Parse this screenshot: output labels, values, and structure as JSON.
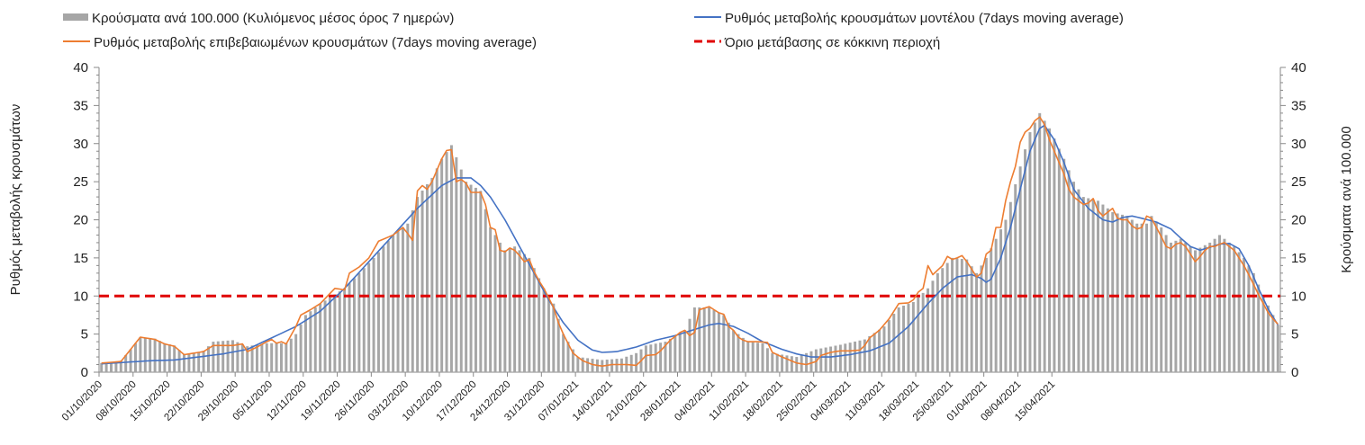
{
  "chart_data": {
    "type": "bar+line",
    "legend": [
      {
        "key": "bars",
        "label": "Κρούσματα ανά 100.000 (Κυλιόμενος μέσος όρος 7 ημερών)",
        "color": "#a6a6a6"
      },
      {
        "key": "model",
        "label": "Ρυθμός μεταβολής κρουσμάτων μοντέλου (7days moving average)",
        "color": "#4472c4"
      },
      {
        "key": "confirmed",
        "label": "Ρυθμός μεταβολής επιβεβαιωμένων κρουσμάτων (7days moving average)",
        "color": "#ed7d31"
      },
      {
        "key": "threshold",
        "label": "Όριο μετάβασης σε κόκκινη περιοχή",
        "color": "#e00000"
      }
    ],
    "ylabel_left": "Ρυθμός μεταβολής κρουσμάτων",
    "ylabel_right": "Κρούσματα ανά 100.000",
    "ylim": [
      0,
      40
    ],
    "yticks": [
      0,
      5,
      10,
      15,
      20,
      25,
      30,
      35,
      40
    ],
    "x_ticks": [
      "01/10/2020",
      "08/10/2020",
      "15/10/2020",
      "22/10/2020",
      "29/10/2020",
      "05/11/2020",
      "12/11/2020",
      "19/11/2020",
      "26/11/2020",
      "03/12/2020",
      "10/12/2020",
      "17/12/2020",
      "24/12/2020",
      "31/12/2020",
      "07/01/2021",
      "14/01/2021",
      "21/01/2021",
      "28/01/2021",
      "04/02/2021",
      "11/02/2021",
      "18/02/2021",
      "25/02/2021",
      "04/03/2021",
      "11/03/2021",
      "18/03/2021",
      "25/03/2021",
      "01/04/2021",
      "08/04/2021",
      "15/04/2021"
    ],
    "threshold": 10,
    "bars_anchors": [
      [
        0,
        1.2
      ],
      [
        4,
        1.5
      ],
      [
        6,
        3
      ],
      [
        8,
        4.6
      ],
      [
        11,
        4.4
      ],
      [
        13,
        3.8
      ],
      [
        15,
        3.5
      ],
      [
        17,
        2.3
      ],
      [
        21,
        2.8
      ],
      [
        23,
        4
      ],
      [
        27,
        4.2
      ],
      [
        30,
        3.4
      ],
      [
        34,
        3.8
      ],
      [
        38,
        3.8
      ],
      [
        40,
        5
      ],
      [
        42,
        7.5
      ],
      [
        45,
        9
      ],
      [
        50,
        11
      ],
      [
        53,
        13
      ],
      [
        56,
        15
      ],
      [
        60,
        18
      ],
      [
        63,
        19.5
      ],
      [
        65,
        23
      ],
      [
        68,
        25.5
      ],
      [
        70,
        28
      ],
      [
        72,
        29.8
      ],
      [
        75,
        25
      ],
      [
        78,
        23.8
      ],
      [
        80,
        19
      ],
      [
        83,
        16
      ],
      [
        85,
        16.5
      ],
      [
        88,
        15
      ],
      [
        91,
        11
      ],
      [
        93,
        9
      ],
      [
        95,
        5
      ],
      [
        98,
        2
      ],
      [
        103,
        1.6
      ],
      [
        107,
        1.8
      ],
      [
        110,
        2.5
      ],
      [
        112,
        3.5
      ],
      [
        116,
        4
      ],
      [
        120,
        5.5
      ],
      [
        122,
        8.5
      ],
      [
        125,
        8.5
      ],
      [
        128,
        7.5
      ],
      [
        130,
        5.5
      ],
      [
        133,
        4
      ],
      [
        136,
        3.8
      ],
      [
        138,
        2.5
      ],
      [
        143,
        2
      ],
      [
        147,
        3
      ],
      [
        152,
        3.6
      ],
      [
        157,
        4.3
      ],
      [
        161,
        6
      ],
      [
        164,
        8.5
      ],
      [
        167,
        9.2
      ],
      [
        170,
        11
      ],
      [
        172,
        13
      ],
      [
        175,
        15
      ],
      [
        178,
        14.8
      ],
      [
        180,
        13
      ],
      [
        182,
        15
      ],
      [
        184,
        17.5
      ],
      [
        186,
        20
      ],
      [
        189,
        27
      ],
      [
        191,
        31.5
      ],
      [
        193,
        34
      ],
      [
        195,
        32
      ],
      [
        198,
        28
      ],
      [
        200,
        25
      ],
      [
        202,
        23
      ],
      [
        205,
        22.5
      ],
      [
        208,
        21
      ],
      [
        211,
        20.5
      ],
      [
        213,
        19.5
      ],
      [
        215,
        19.5
      ],
      [
        216,
        20.5
      ],
      [
        218,
        19
      ],
      [
        220,
        17
      ],
      [
        222,
        17.5
      ],
      [
        225,
        16
      ],
      [
        228,
        17
      ],
      [
        230,
        18
      ],
      [
        233,
        16.5
      ],
      [
        235,
        15
      ],
      [
        237,
        13
      ],
      [
        239,
        10
      ],
      [
        241,
        7.5
      ],
      [
        242,
        6.2
      ]
    ],
    "confirmed_anchors": [
      [
        0,
        1.2
      ],
      [
        4,
        1.4
      ],
      [
        6,
        3
      ],
      [
        8,
        4.6
      ],
      [
        11,
        4.3
      ],
      [
        13,
        3.7
      ],
      [
        15,
        3.4
      ],
      [
        17,
        2.3
      ],
      [
        21,
        2.7
      ],
      [
        23,
        3.5
      ],
      [
        27,
        3.5
      ],
      [
        29,
        3.7
      ],
      [
        30,
        2.7
      ],
      [
        32,
        3.3
      ],
      [
        34,
        4
      ],
      [
        35,
        4.3
      ],
      [
        36,
        3.8
      ],
      [
        37,
        4
      ],
      [
        38,
        3.7
      ],
      [
        40,
        6
      ],
      [
        41,
        7.5
      ],
      [
        43,
        8.2
      ],
      [
        45,
        9
      ],
      [
        48,
        11
      ],
      [
        50,
        10.8
      ],
      [
        51,
        13
      ],
      [
        53,
        13.8
      ],
      [
        55,
        15
      ],
      [
        57,
        17.2
      ],
      [
        60,
        18
      ],
      [
        62,
        19
      ],
      [
        63,
        18.2
      ],
      [
        64,
        17.3
      ],
      [
        65,
        23.8
      ],
      [
        66,
        24.5
      ],
      [
        67,
        24
      ],
      [
        68,
        25
      ],
      [
        70,
        28
      ],
      [
        71,
        29.1
      ],
      [
        72,
        29.2
      ],
      [
        73,
        25
      ],
      [
        74,
        25.3
      ],
      [
        75,
        24.8
      ],
      [
        76,
        23.6
      ],
      [
        78,
        23.6
      ],
      [
        79,
        22
      ],
      [
        80,
        19
      ],
      [
        81,
        18.7
      ],
      [
        82,
        16
      ],
      [
        83,
        15.8
      ],
      [
        84,
        16.3
      ],
      [
        85,
        16
      ],
      [
        86,
        15.3
      ],
      [
        87,
        14.5
      ],
      [
        88,
        14.8
      ],
      [
        89,
        13.2
      ],
      [
        90,
        12
      ],
      [
        91,
        11
      ],
      [
        93,
        8.5
      ],
      [
        94,
        6.5
      ],
      [
        95,
        5
      ],
      [
        97,
        2.5
      ],
      [
        99,
        1.5
      ],
      [
        101,
        1
      ],
      [
        103,
        0.8
      ],
      [
        105,
        1
      ],
      [
        108,
        1
      ],
      [
        110,
        0.9
      ],
      [
        111,
        1.5
      ],
      [
        112,
        2.2
      ],
      [
        114,
        2.3
      ],
      [
        115,
        2.8
      ],
      [
        117,
        4.2
      ],
      [
        119,
        5.2
      ],
      [
        120,
        5.5
      ],
      [
        121,
        4.8
      ],
      [
        122,
        5.2
      ],
      [
        123,
        8.2
      ],
      [
        124,
        8.4
      ],
      [
        125,
        8.6
      ],
      [
        126,
        8.2
      ],
      [
        127,
        7.8
      ],
      [
        128,
        7.6
      ],
      [
        129,
        6
      ],
      [
        130,
        5.5
      ],
      [
        131,
        4.6
      ],
      [
        132,
        4.2
      ],
      [
        133,
        4
      ],
      [
        135,
        4
      ],
      [
        137,
        3.9
      ],
      [
        138,
        2.6
      ],
      [
        140,
        2
      ],
      [
        143,
        1.2
      ],
      [
        145,
        1
      ],
      [
        147,
        1.4
      ],
      [
        148,
        2.2
      ],
      [
        150,
        2.6
      ],
      [
        152,
        2.8
      ],
      [
        154,
        2.8
      ],
      [
        156,
        2.9
      ],
      [
        157,
        3.5
      ],
      [
        158,
        4.5
      ],
      [
        160,
        5.5
      ],
      [
        162,
        7
      ],
      [
        163,
        8
      ],
      [
        164,
        9
      ],
      [
        166,
        9.1
      ],
      [
        167,
        9.5
      ],
      [
        168,
        10.5
      ],
      [
        169,
        11
      ],
      [
        170,
        14
      ],
      [
        171,
        12.8
      ],
      [
        173,
        14
      ],
      [
        174,
        15.2
      ],
      [
        175,
        14.8
      ],
      [
        176,
        15
      ],
      [
        177,
        15.3
      ],
      [
        178,
        14.5
      ],
      [
        180,
        12.5
      ],
      [
        181,
        13
      ],
      [
        182,
        15.5
      ],
      [
        183,
        16
      ],
      [
        184,
        19
      ],
      [
        185,
        19
      ],
      [
        186,
        22.5
      ],
      [
        187,
        25
      ],
      [
        188,
        27
      ],
      [
        189,
        30.2
      ],
      [
        190,
        31.5
      ],
      [
        191,
        32
      ],
      [
        192,
        33
      ],
      [
        193,
        33.5
      ],
      [
        194,
        32.5
      ],
      [
        195,
        30.5
      ],
      [
        196,
        29
      ],
      [
        197,
        27.5
      ],
      [
        198,
        26
      ],
      [
        199,
        24
      ],
      [
        200,
        23
      ],
      [
        201,
        22.5
      ],
      [
        202,
        22
      ],
      [
        203,
        22.2
      ],
      [
        204,
        22.8
      ],
      [
        205,
        21.2
      ],
      [
        206,
        20.5
      ],
      [
        207,
        21
      ],
      [
        208,
        21.5
      ],
      [
        209,
        20.2
      ],
      [
        210,
        20
      ],
      [
        211,
        20
      ],
      [
        212,
        19.2
      ],
      [
        213,
        18.8
      ],
      [
        214,
        19
      ],
      [
        215,
        20.5
      ],
      [
        216,
        20.2
      ],
      [
        217,
        19
      ],
      [
        218,
        17.8
      ],
      [
        219,
        16.5
      ],
      [
        220,
        16.2
      ],
      [
        221,
        16.8
      ],
      [
        222,
        17
      ],
      [
        223,
        16.5
      ],
      [
        224,
        15.5
      ],
      [
        225,
        14.5
      ],
      [
        226,
        15.2
      ],
      [
        227,
        16
      ],
      [
        228,
        16.5
      ],
      [
        229,
        16.5
      ],
      [
        230,
        16.8
      ],
      [
        231,
        17
      ],
      [
        232,
        16.5
      ],
      [
        233,
        16
      ],
      [
        234,
        15
      ],
      [
        235,
        14
      ],
      [
        236,
        12.8
      ],
      [
        237,
        11.5
      ],
      [
        238,
        10.2
      ],
      [
        239,
        9
      ],
      [
        240,
        7.8
      ],
      [
        241,
        7
      ],
      [
        242,
        6.3
      ]
    ],
    "model_anchors": [
      [
        0,
        1.1
      ],
      [
        5,
        1.3
      ],
      [
        10,
        1.5
      ],
      [
        15,
        1.6
      ],
      [
        20,
        2
      ],
      [
        25,
        2.4
      ],
      [
        30,
        3
      ],
      [
        35,
        4.5
      ],
      [
        40,
        6
      ],
      [
        45,
        8
      ],
      [
        50,
        11
      ],
      [
        55,
        14.5
      ],
      [
        60,
        18
      ],
      [
        65,
        21.5
      ],
      [
        70,
        24.5
      ],
      [
        73,
        25.5
      ],
      [
        76,
        25.5
      ],
      [
        78,
        24.5
      ],
      [
        80,
        23
      ],
      [
        83,
        20
      ],
      [
        86,
        16.5
      ],
      [
        89,
        13
      ],
      [
        92,
        9.5
      ],
      [
        95,
        6.5
      ],
      [
        98,
        4.2
      ],
      [
        101,
        2.9
      ],
      [
        103,
        2.6
      ],
      [
        106,
        2.7
      ],
      [
        110,
        3.3
      ],
      [
        114,
        4.2
      ],
      [
        118,
        4.8
      ],
      [
        122,
        5.6
      ],
      [
        125,
        6.2
      ],
      [
        127,
        6.4
      ],
      [
        130,
        6
      ],
      [
        133,
        5.1
      ],
      [
        136,
        4
      ],
      [
        140,
        3
      ],
      [
        143,
        2.4
      ],
      [
        146,
        2
      ],
      [
        150,
        2
      ],
      [
        154,
        2.3
      ],
      [
        158,
        2.8
      ],
      [
        162,
        3.8
      ],
      [
        166,
        6
      ],
      [
        170,
        9
      ],
      [
        173,
        11
      ],
      [
        176,
        12.5
      ],
      [
        179,
        12.8
      ],
      [
        181,
        12.3
      ],
      [
        182,
        11.8
      ],
      [
        183,
        12.2
      ],
      [
        185,
        15
      ],
      [
        187,
        19
      ],
      [
        189,
        24
      ],
      [
        191,
        29
      ],
      [
        193,
        32
      ],
      [
        194,
        32.4
      ],
      [
        196,
        30.5
      ],
      [
        198,
        27.5
      ],
      [
        200,
        24
      ],
      [
        203,
        21.5
      ],
      [
        206,
        20
      ],
      [
        208,
        19.7
      ],
      [
        210,
        20.3
      ],
      [
        212,
        20.5
      ],
      [
        214,
        20.2
      ],
      [
        217,
        19.7
      ],
      [
        220,
        18.8
      ],
      [
        222,
        17.6
      ],
      [
        224,
        16.5
      ],
      [
        226,
        16
      ],
      [
        228,
        16.4
      ],
      [
        230,
        16.8
      ],
      [
        232,
        16.9
      ],
      [
        234,
        16.2
      ],
      [
        236,
        14
      ],
      [
        238,
        11
      ],
      [
        240,
        8.3
      ],
      [
        242,
        6.2
      ]
    ]
  }
}
